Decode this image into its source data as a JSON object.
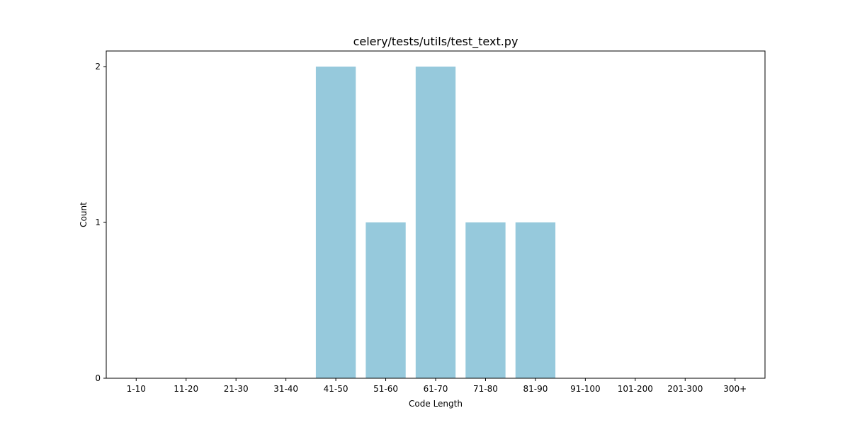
{
  "chart_data": {
    "type": "bar",
    "title": "celery/tests/utils/test_text.py",
    "xlabel": "Code Length",
    "ylabel": "Count",
    "categories": [
      "1-10",
      "11-20",
      "21-30",
      "31-40",
      "41-50",
      "51-60",
      "61-70",
      "71-80",
      "81-90",
      "91-100",
      "101-200",
      "201-300",
      "300+"
    ],
    "values": [
      0,
      0,
      0,
      0,
      2,
      1,
      2,
      1,
      1,
      0,
      0,
      0,
      0
    ],
    "ylim": [
      0,
      2.1
    ],
    "yticks": [
      0,
      1,
      2
    ],
    "yticks_labels": [
      "0",
      "1",
      "2"
    ],
    "grid": false,
    "legend": "none",
    "bar_color": "#96c9dc"
  }
}
